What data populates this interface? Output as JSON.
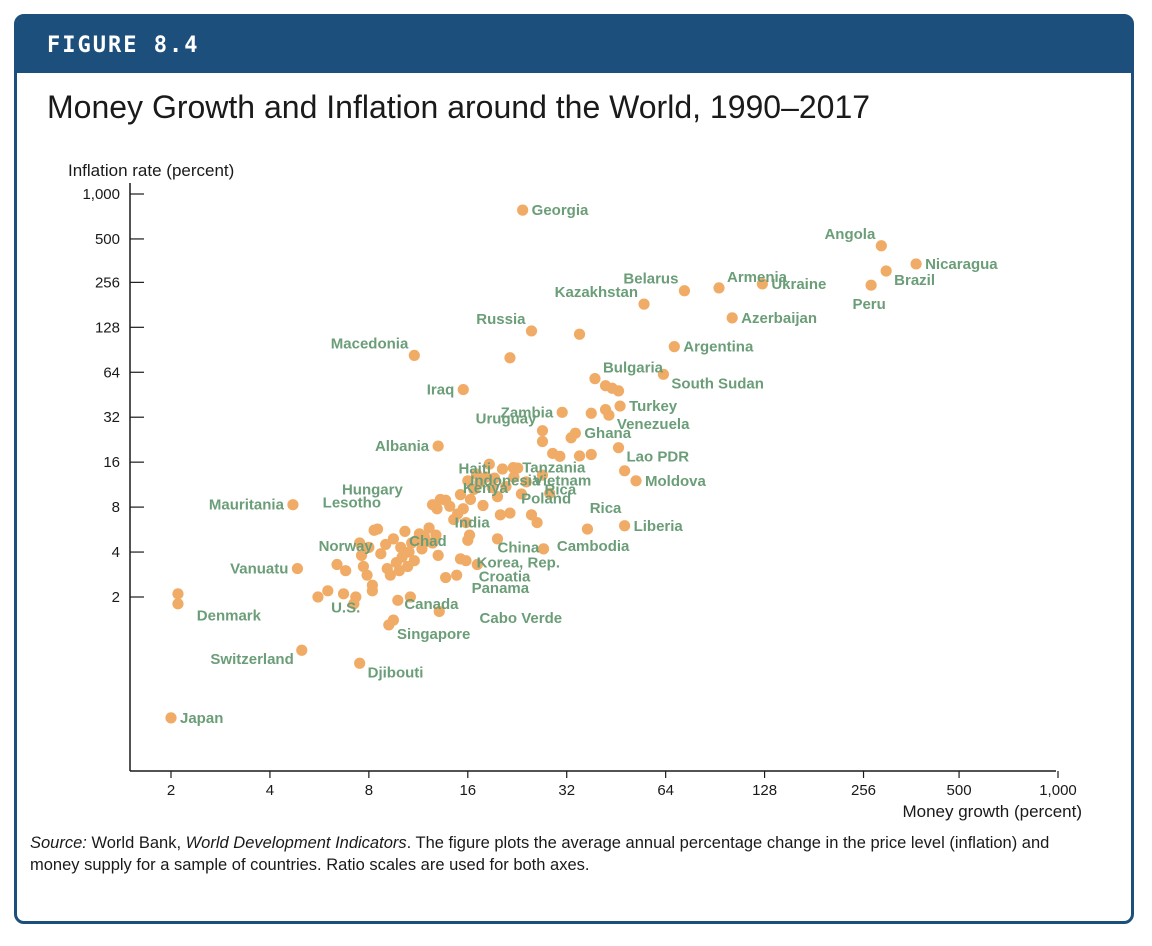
{
  "figure_label": "FIGURE 8.4",
  "title": "Money Growth and Inflation around the World, 1990–2017",
  "caption": {
    "source_label": "Source:",
    "source_text_1": " World Bank, ",
    "source_italic": "World Development Indicators",
    "source_text_2": ". The figure plots the average annual percentage change in the price level (inflation) and money supply for a sample of countries. Ratio scales are used for both axes."
  },
  "colors": {
    "frame": "#1d4f7c",
    "point": "#f0ac66",
    "label": "#6b9e78",
    "axis": "#1a1a1a"
  },
  "chart_data": {
    "type": "scatter",
    "xscale": "log",
    "yscale": "log",
    "xlabel": "Money growth (percent)",
    "ylabel": "Inflation rate (percent)",
    "xlim": [
      1.7,
      1100
    ],
    "ylim": [
      0.28,
      1000
    ],
    "xticks": [
      {
        "v": 2,
        "label": "2"
      },
      {
        "v": 4,
        "label": "4"
      },
      {
        "v": 8,
        "label": "8"
      },
      {
        "v": 16,
        "label": "16"
      },
      {
        "v": 32,
        "label": "32"
      },
      {
        "v": 64,
        "label": "64"
      },
      {
        "v": 128,
        "label": "128"
      },
      {
        "v": 256,
        "label": "256"
      },
      {
        "v": 500,
        "label": "500"
      },
      {
        "v": 1000,
        "label": "1,000"
      }
    ],
    "yticks": [
      {
        "v": 2,
        "label": "2"
      },
      {
        "v": 4,
        "label": "4"
      },
      {
        "v": 8,
        "label": "8"
      },
      {
        "v": 16,
        "label": "16"
      },
      {
        "v": 32,
        "label": "32"
      },
      {
        "v": 64,
        "label": "64"
      },
      {
        "v": 128,
        "label": "128"
      },
      {
        "v": 256,
        "label": "256"
      },
      {
        "v": 500,
        "label": "500"
      },
      {
        "v": 1000,
        "label": "1,000"
      }
    ],
    "labeled_points": [
      {
        "label": "Georgia",
        "x": 23.5,
        "y": 780,
        "side": "right"
      },
      {
        "label": "Angola",
        "x": 290,
        "y": 450,
        "side": "left-up"
      },
      {
        "label": "Nicaragua",
        "x": 370,
        "y": 340,
        "side": "right"
      },
      {
        "label": "Brazil",
        "x": 300,
        "y": 305,
        "side": "right-down"
      },
      {
        "label": "Peru",
        "x": 270,
        "y": 245,
        "side": "below"
      },
      {
        "label": "Armenia",
        "x": 93,
        "y": 235,
        "side": "right-up"
      },
      {
        "label": "Ukraine",
        "x": 126,
        "y": 250,
        "side": "right"
      },
      {
        "label": "Belarus",
        "x": 73,
        "y": 225,
        "side": "left-up"
      },
      {
        "label": "Kazakhstan",
        "x": 55,
        "y": 183,
        "side": "left-up"
      },
      {
        "label": "Azerbaijan",
        "x": 102,
        "y": 148,
        "side": "right"
      },
      {
        "label": "Russia",
        "x": 25,
        "y": 121,
        "side": "left-up"
      },
      {
        "label": "Argentina",
        "x": 68,
        "y": 95,
        "side": "right"
      },
      {
        "label": "Macedonia",
        "x": 11,
        "y": 83,
        "side": "left-up"
      },
      {
        "label": "Bulgaria",
        "x": 39,
        "y": 58,
        "side": "right-up"
      },
      {
        "label": "South Sudan",
        "x": 63,
        "y": 62,
        "side": "right-down"
      },
      {
        "label": "Iraq",
        "x": 15.5,
        "y": 49,
        "side": "left"
      },
      {
        "label": "Turkey",
        "x": 46.5,
        "y": 38,
        "side": "right"
      },
      {
        "label": "Zambia",
        "x": 31,
        "y": 34.5,
        "side": "left"
      },
      {
        "label": "Venezuela",
        "x": 43,
        "y": 33,
        "side": "right-down"
      },
      {
        "label": "Uruguay",
        "x": 27,
        "y": 26,
        "side": "left-up"
      },
      {
        "label": "Ghana",
        "x": 34,
        "y": 25,
        "side": "right"
      },
      {
        "label": "Albania",
        "x": 13,
        "y": 20.5,
        "side": "left"
      },
      {
        "label": "Lao PDR",
        "x": 46,
        "y": 20,
        "side": "right-down"
      },
      {
        "label": "Tanzania",
        "x": 22,
        "y": 14.7,
        "side": "right"
      },
      {
        "label": "Moldova",
        "x": 52,
        "y": 12,
        "side": "right"
      },
      {
        "label": "Mauritania",
        "x": 4.7,
        "y": 8.3,
        "side": "left"
      },
      {
        "label": "Liberia",
        "x": 48,
        "y": 6,
        "side": "right"
      },
      {
        "label": "Vanuatu",
        "x": 4.85,
        "y": 3.1,
        "side": "left"
      },
      {
        "label": "Switzerland",
        "x": 5.0,
        "y": 0.88,
        "side": "left-down"
      },
      {
        "label": "Djibouti",
        "x": 7.5,
        "y": 0.72,
        "side": "right-down"
      },
      {
        "label": "Japan",
        "x": 2,
        "y": 0.31,
        "side": "right"
      }
    ],
    "labels_only": [
      {
        "label": "Hungary",
        "x": 8.2,
        "y": 10.5
      },
      {
        "label": "Lesotho",
        "x": 7.1,
        "y": 8.6
      },
      {
        "label": "Haiti",
        "x": 16.8,
        "y": 14.5
      },
      {
        "label": "Indonesia",
        "x": 20.8,
        "y": 12.1
      },
      {
        "label": "Vietnam",
        "x": 31,
        "y": 12.1
      },
      {
        "label": "Kenya",
        "x": 18.1,
        "y": 10.7
      },
      {
        "label": "Rica",
        "x": 30.6,
        "y": 10.5
      },
      {
        "label": "Poland",
        "x": 27.7,
        "y": 9.1
      },
      {
        "label": "Rica",
        "x": 42,
        "y": 7.9
      },
      {
        "label": "India",
        "x": 16.5,
        "y": 6.3
      },
      {
        "label": "Chad",
        "x": 12.1,
        "y": 4.75
      },
      {
        "label": "Norway",
        "x": 6.8,
        "y": 4.4
      },
      {
        "label": "China",
        "x": 22.8,
        "y": 4.3
      },
      {
        "label": "Cambodia",
        "x": 38.5,
        "y": 4.4
      },
      {
        "label": "Korea, Rep.",
        "x": 22.8,
        "y": 3.4
      },
      {
        "label": "Croatia",
        "x": 20.7,
        "y": 2.75
      },
      {
        "label": "Panama",
        "x": 20.1,
        "y": 2.3
      },
      {
        "label": "U.S.",
        "x": 6.8,
        "y": 1.7
      },
      {
        "label": "Canada",
        "x": 12.4,
        "y": 1.8
      },
      {
        "label": "Denmark",
        "x": 3.0,
        "y": 1.5
      },
      {
        "label": "Cabo Verde",
        "x": 23.2,
        "y": 1.45
      },
      {
        "label": "Singapore",
        "x": 12.6,
        "y": 1.13
      }
    ],
    "points": [
      [
        2.1,
        2.1
      ],
      [
        2.1,
        1.8
      ],
      [
        5.6,
        2.0
      ],
      [
        6.0,
        2.2
      ],
      [
        6.4,
        3.3
      ],
      [
        6.7,
        2.1
      ],
      [
        6.8,
        3.0
      ],
      [
        7.2,
        1.8
      ],
      [
        7.3,
        2.0
      ],
      [
        7.5,
        4.6
      ],
      [
        7.6,
        3.8
      ],
      [
        7.7,
        3.2
      ],
      [
        7.9,
        2.8
      ],
      [
        8.0,
        4.3
      ],
      [
        8.2,
        2.4
      ],
      [
        8.3,
        5.6
      ],
      [
        8.5,
        5.7
      ],
      [
        8.7,
        3.9
      ],
      [
        9.0,
        4.5
      ],
      [
        9.1,
        3.1
      ],
      [
        9.3,
        2.8
      ],
      [
        9.5,
        4.9
      ],
      [
        9.7,
        3.4
      ],
      [
        9.9,
        3.0
      ],
      [
        10.0,
        4.3
      ],
      [
        10.1,
        3.7
      ],
      [
        10.3,
        5.5
      ],
      [
        10.5,
        3.2
      ],
      [
        10.6,
        4.0
      ],
      [
        10.8,
        4.6
      ],
      [
        11.0,
        3.5
      ],
      [
        11.2,
        4.8
      ],
      [
        11.4,
        5.3
      ],
      [
        11.6,
        4.2
      ],
      [
        11.8,
        5.1
      ],
      [
        12.0,
        4.7
      ],
      [
        12.2,
        5.8
      ],
      [
        12.5,
        4.6
      ],
      [
        12.8,
        5.2
      ],
      [
        13.0,
        3.8
      ],
      [
        9.8,
        1.9
      ],
      [
        10.7,
        2.0
      ],
      [
        9.5,
        1.4
      ],
      [
        9.2,
        1.3
      ],
      [
        8.2,
        2.2
      ],
      [
        12.5,
        8.3
      ],
      [
        12.9,
        7.8
      ],
      [
        13.2,
        9.0
      ],
      [
        13.7,
        8.9
      ],
      [
        14.1,
        8.1
      ],
      [
        14.5,
        6.6
      ],
      [
        14.9,
        7.2
      ],
      [
        15.2,
        9.7
      ],
      [
        15.5,
        7.8
      ],
      [
        15.8,
        6.3
      ],
      [
        16.0,
        12.0
      ],
      [
        16.3,
        9.0
      ],
      [
        16.7,
        10.5
      ],
      [
        17.0,
        13.3
      ],
      [
        17.4,
        11.7
      ],
      [
        17.8,
        8.2
      ],
      [
        18.2,
        12.7
      ],
      [
        18.6,
        15.5
      ],
      [
        19.0,
        10.8
      ],
      [
        19.3,
        12.5
      ],
      [
        19.7,
        9.4
      ],
      [
        20.1,
        7.1
      ],
      [
        20.4,
        14.4
      ],
      [
        20.9,
        11.0
      ],
      [
        21.5,
        7.3
      ],
      [
        22.1,
        12.7
      ],
      [
        22.7,
        14.6
      ],
      [
        23.3,
        9.8
      ],
      [
        24.1,
        11.8
      ],
      [
        25.0,
        7.1
      ],
      [
        26.0,
        6.3
      ],
      [
        27.0,
        13.1
      ],
      [
        28.4,
        9.9
      ],
      [
        29.0,
        18.3
      ],
      [
        30.5,
        17.5
      ],
      [
        33.0,
        23.3
      ],
      [
        35.0,
        17.6
      ],
      [
        38.0,
        34.0
      ],
      [
        42.0,
        36.0
      ],
      [
        44.0,
        50.0
      ],
      [
        46.0,
        48.0
      ],
      [
        42.0,
        52.0
      ],
      [
        16.0,
        4.8
      ],
      [
        16.2,
        5.2
      ],
      [
        17.1,
        3.3
      ],
      [
        15.8,
        3.5
      ],
      [
        13.7,
        2.7
      ],
      [
        14.8,
        2.8
      ],
      [
        15.2,
        3.6
      ],
      [
        13.1,
        1.6
      ],
      [
        19.7,
        4.9
      ],
      [
        27.2,
        4.2
      ],
      [
        37.0,
        5.7
      ],
      [
        48.0,
        14.0
      ],
      [
        35.0,
        115.0
      ],
      [
        21.5,
        80.0
      ],
      [
        38.0,
        18.0
      ],
      [
        27.0,
        22.0
      ]
    ]
  }
}
